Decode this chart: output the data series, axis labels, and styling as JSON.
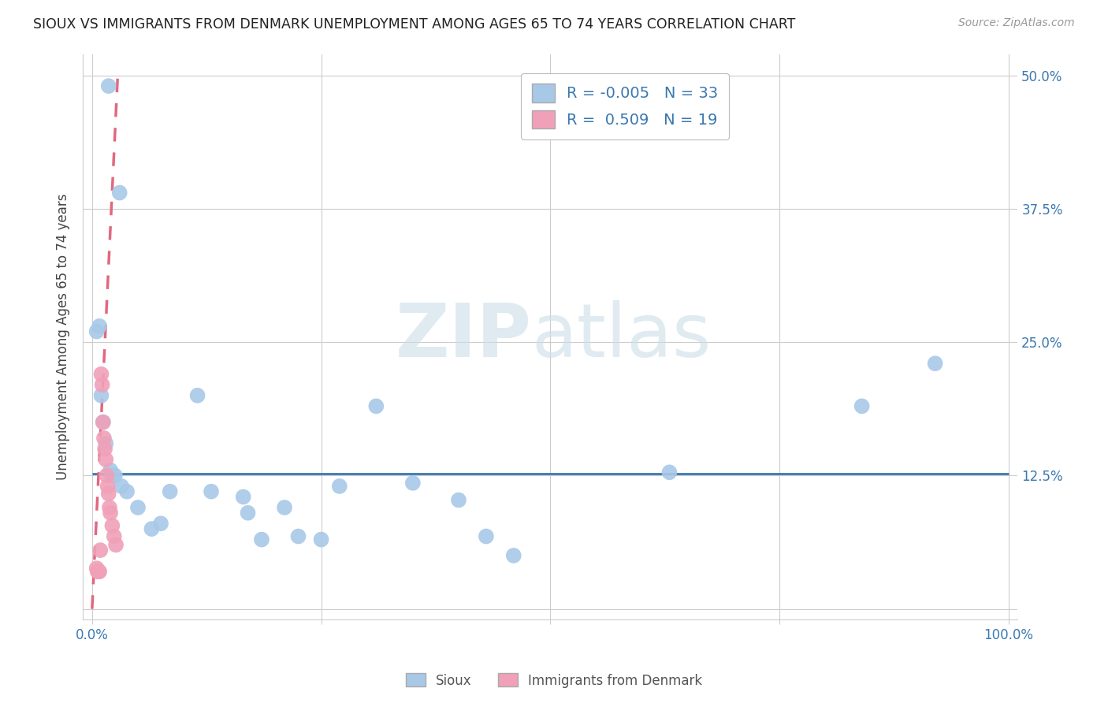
{
  "title": "SIOUX VS IMMIGRANTS FROM DENMARK UNEMPLOYMENT AMONG AGES 65 TO 74 YEARS CORRELATION CHART",
  "source": "Source: ZipAtlas.com",
  "ylabel": "Unemployment Among Ages 65 to 74 years",
  "xlim": [
    -0.01,
    1.01
  ],
  "ylim": [
    -0.01,
    0.52
  ],
  "xticks": [
    0.0,
    0.25,
    0.5,
    0.75,
    1.0
  ],
  "xticklabels": [
    "0.0%",
    "",
    "",
    "",
    "100.0%"
  ],
  "yticks": [
    0.0,
    0.125,
    0.25,
    0.375,
    0.5
  ],
  "yticklabels": [
    "",
    "12.5%",
    "25.0%",
    "37.5%",
    "50.0%"
  ],
  "watermark_zip": "ZIP",
  "watermark_atlas": "atlas",
  "legend_r1": "R = -0.005",
  "legend_n1": "N = 33",
  "legend_r2": "R =  0.509",
  "legend_n2": "N = 19",
  "sioux_color": "#a8c8e8",
  "denmark_color": "#f0a0b8",
  "sioux_line_color": "#3a78b0",
  "denmark_line_color": "#e06880",
  "sioux_line_y": 0.127,
  "denmark_line_x0": 0.0,
  "denmark_line_y0": 0.0,
  "denmark_line_x1": 0.028,
  "denmark_line_y1": 0.5,
  "sioux_x": [
    0.018,
    0.03,
    0.005,
    0.008,
    0.01,
    0.012,
    0.015,
    0.02,
    0.022,
    0.025,
    0.032,
    0.038,
    0.05,
    0.065,
    0.075,
    0.085,
    0.115,
    0.13,
    0.165,
    0.17,
    0.185,
    0.21,
    0.225,
    0.25,
    0.27,
    0.31,
    0.35,
    0.4,
    0.43,
    0.46,
    0.63,
    0.84,
    0.92
  ],
  "sioux_y": [
    0.49,
    0.39,
    0.26,
    0.265,
    0.2,
    0.175,
    0.155,
    0.13,
    0.125,
    0.125,
    0.115,
    0.11,
    0.095,
    0.075,
    0.08,
    0.11,
    0.2,
    0.11,
    0.105,
    0.09,
    0.065,
    0.095,
    0.068,
    0.065,
    0.115,
    0.19,
    0.118,
    0.102,
    0.068,
    0.05,
    0.128,
    0.19,
    0.23
  ],
  "denmark_x": [
    0.005,
    0.006,
    0.007,
    0.008,
    0.009,
    0.01,
    0.011,
    0.012,
    0.013,
    0.014,
    0.015,
    0.016,
    0.017,
    0.018,
    0.019,
    0.02,
    0.022,
    0.024,
    0.026
  ],
  "denmark_y": [
    0.038,
    0.035,
    0.035,
    0.035,
    0.055,
    0.22,
    0.21,
    0.175,
    0.16,
    0.15,
    0.14,
    0.125,
    0.115,
    0.108,
    0.095,
    0.09,
    0.078,
    0.068,
    0.06
  ],
  "background_color": "#ffffff",
  "grid_color": "#cccccc",
  "title_color": "#222222",
  "axis_label_color": "#444444",
  "tick_label_color": "#3a78b0",
  "right_tick_color": "#3a78b0"
}
